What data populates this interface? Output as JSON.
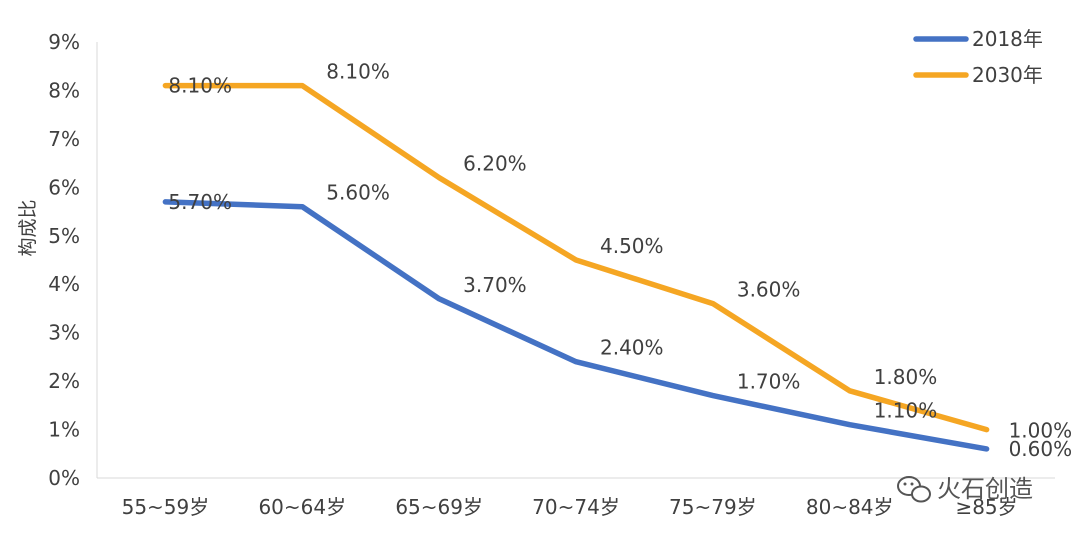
{
  "chart_data": {
    "type": "line",
    "categories": [
      "55~59岁",
      "60~64岁",
      "65~69岁",
      "70~74岁",
      "75~79岁",
      "80~84岁",
      "≥85岁"
    ],
    "series": [
      {
        "name": "2018年",
        "values": [
          5.7,
          5.6,
          3.7,
          2.4,
          1.7,
          1.1,
          0.6
        ],
        "labels": [
          "5.70%",
          "5.60%",
          "3.70%",
          "2.40%",
          "1.70%",
          "1.10%",
          "0.60%"
        ],
        "color": "#4472C4"
      },
      {
        "name": "2030年",
        "values": [
          8.1,
          8.1,
          6.2,
          4.5,
          3.6,
          1.8,
          1.0
        ],
        "labels": [
          "8.10%",
          "8.10%",
          "6.20%",
          "4.50%",
          "3.60%",
          "1.80%",
          "1.00%"
        ],
        "color": "#F5A623"
      }
    ],
    "ylabel": "构成比",
    "xlabel": "",
    "ylim": [
      0,
      9
    ],
    "yticks": [
      "0%",
      "1%",
      "2%",
      "3%",
      "4%",
      "5%",
      "6%",
      "7%",
      "8%",
      "9%"
    ],
    "grid": false,
    "legend": "top-right"
  },
  "watermark": {
    "text": "火石创造",
    "icon": "wechat-icon"
  }
}
